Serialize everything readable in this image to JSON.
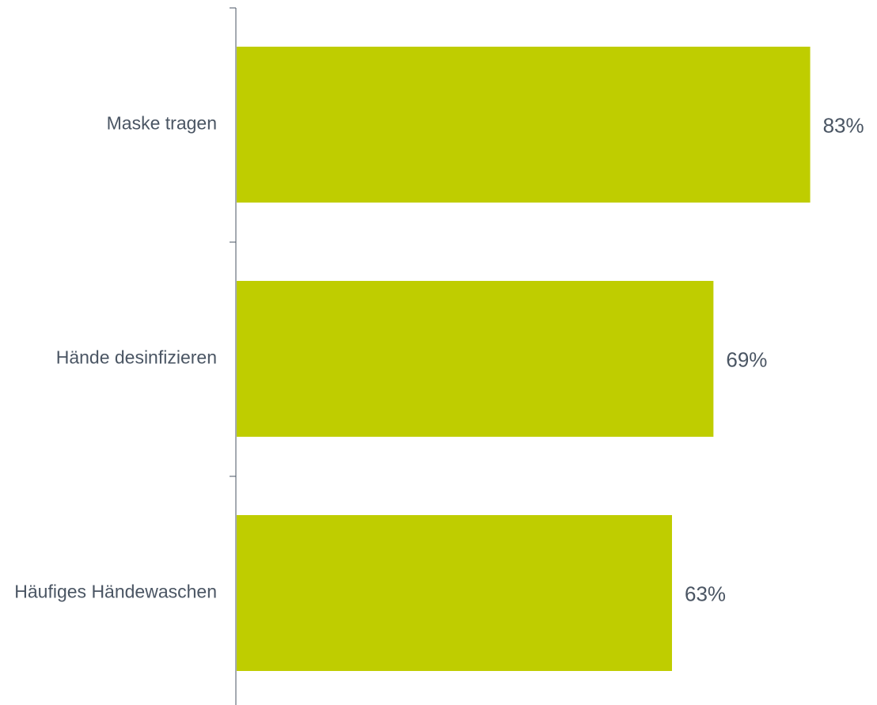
{
  "chart_data": {
    "type": "bar",
    "orientation": "horizontal",
    "categories": [
      "Maske tragen",
      "Hände desinfizieren",
      "Häufiges Händewaschen"
    ],
    "values": [
      83,
      69,
      63
    ],
    "value_labels": [
      "83%",
      "69%",
      "63%"
    ],
    "unit": "%",
    "xlim": [
      0,
      100
    ],
    "grid": false,
    "legend": "none"
  },
  "colors": {
    "bar": "#bfcd00",
    "text": "#4a5563",
    "axis": "#4a5563"
  }
}
